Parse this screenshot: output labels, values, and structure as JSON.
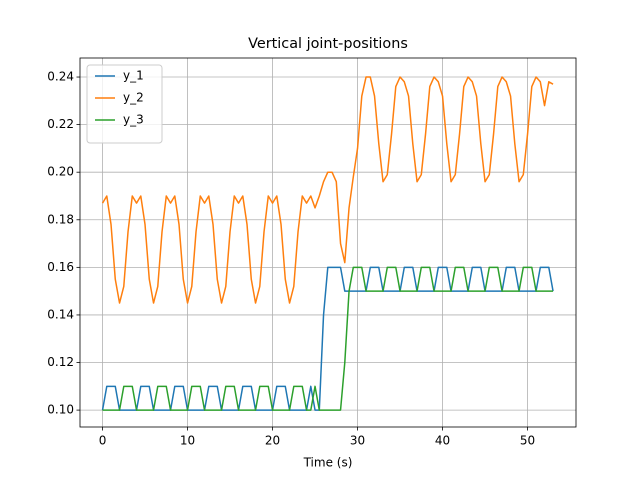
{
  "chart_data": {
    "type": "line",
    "title": "Vertical joint-positions",
    "x_label": "Time (s)",
    "x": [
      0,
      0.5,
      1,
      1.5,
      2,
      2.5,
      3,
      3.5,
      4,
      4.5,
      5,
      5.5,
      6,
      6.5,
      7,
      7.5,
      8,
      8.5,
      9,
      9.5,
      10,
      10.5,
      11,
      11.5,
      12,
      12.5,
      13,
      13.5,
      14,
      14.5,
      15,
      15.5,
      16,
      16.5,
      17,
      17.5,
      18,
      18.5,
      19,
      19.5,
      20,
      20.5,
      21,
      21.5,
      22,
      22.5,
      23,
      23.5,
      24,
      24.5,
      25,
      25.5,
      26,
      26.5,
      27,
      27.5,
      28,
      28.5,
      29,
      29.5,
      30,
      30.5,
      31,
      31.5,
      32,
      32.5,
      33,
      33.5,
      34,
      34.5,
      35,
      35.5,
      36,
      36.5,
      37,
      37.5,
      38,
      38.5,
      39,
      39.5,
      40,
      40.5,
      41,
      41.5,
      42,
      42.5,
      43,
      43.5,
      44,
      44.5,
      45,
      45.5,
      46,
      46.5,
      47,
      47.5,
      48,
      48.5,
      49,
      49.5,
      50,
      50.5,
      51,
      51.5,
      52,
      52.5,
      53
    ],
    "series": [
      {
        "name": "y_1",
        "color": "#1f77b4",
        "values": [
          0.1,
          0.11,
          0.11,
          0.11,
          0.1,
          0.1,
          0.1,
          0.1,
          0.1,
          0.11,
          0.11,
          0.11,
          0.1,
          0.1,
          0.1,
          0.1,
          0.1,
          0.11,
          0.11,
          0.11,
          0.1,
          0.1,
          0.1,
          0.1,
          0.1,
          0.11,
          0.11,
          0.11,
          0.1,
          0.1,
          0.1,
          0.1,
          0.1,
          0.11,
          0.11,
          0.11,
          0.1,
          0.1,
          0.1,
          0.1,
          0.1,
          0.11,
          0.11,
          0.11,
          0.1,
          0.1,
          0.1,
          0.1,
          0.1,
          0.11,
          0.1,
          0.1,
          0.14,
          0.16,
          0.16,
          0.16,
          0.16,
          0.15,
          0.15,
          0.15,
          0.15,
          0.15,
          0.15,
          0.16,
          0.16,
          0.16,
          0.15,
          0.15,
          0.15,
          0.15,
          0.15,
          0.16,
          0.16,
          0.16,
          0.15,
          0.15,
          0.15,
          0.15,
          0.15,
          0.16,
          0.16,
          0.16,
          0.15,
          0.15,
          0.15,
          0.15,
          0.15,
          0.16,
          0.16,
          0.16,
          0.15,
          0.15,
          0.15,
          0.15,
          0.15,
          0.16,
          0.16,
          0.16,
          0.15,
          0.15,
          0.15,
          0.15,
          0.15,
          0.16,
          0.16,
          0.16,
          0.15
        ]
      },
      {
        "name": "y_2",
        "color": "#ff7f0e",
        "values": [
          0.187,
          0.19,
          0.178,
          0.155,
          0.145,
          0.152,
          0.175,
          0.19,
          0.187,
          0.19,
          0.178,
          0.155,
          0.145,
          0.152,
          0.175,
          0.19,
          0.187,
          0.19,
          0.178,
          0.155,
          0.145,
          0.152,
          0.175,
          0.19,
          0.187,
          0.19,
          0.178,
          0.155,
          0.145,
          0.152,
          0.175,
          0.19,
          0.187,
          0.19,
          0.178,
          0.155,
          0.145,
          0.152,
          0.175,
          0.19,
          0.187,
          0.19,
          0.178,
          0.155,
          0.145,
          0.152,
          0.175,
          0.19,
          0.187,
          0.19,
          0.185,
          0.19,
          0.196,
          0.2,
          0.2,
          0.196,
          0.17,
          0.162,
          0.185,
          0.198,
          0.21,
          0.232,
          0.24,
          0.24,
          0.232,
          0.212,
          0.196,
          0.199,
          0.216,
          0.236,
          0.24,
          0.238,
          0.232,
          0.212,
          0.196,
          0.199,
          0.216,
          0.236,
          0.24,
          0.238,
          0.232,
          0.212,
          0.196,
          0.199,
          0.216,
          0.236,
          0.24,
          0.238,
          0.232,
          0.212,
          0.196,
          0.199,
          0.216,
          0.236,
          0.24,
          0.238,
          0.232,
          0.212,
          0.196,
          0.199,
          0.216,
          0.236,
          0.24,
          0.238,
          0.228,
          0.238,
          0.237
        ]
      },
      {
        "name": "y_3",
        "color": "#2ca02c",
        "values": [
          0.1,
          0.1,
          0.1,
          0.1,
          0.1,
          0.11,
          0.11,
          0.11,
          0.1,
          0.1,
          0.1,
          0.1,
          0.1,
          0.11,
          0.11,
          0.11,
          0.1,
          0.1,
          0.1,
          0.1,
          0.1,
          0.11,
          0.11,
          0.11,
          0.1,
          0.1,
          0.1,
          0.1,
          0.1,
          0.11,
          0.11,
          0.11,
          0.1,
          0.1,
          0.1,
          0.1,
          0.1,
          0.11,
          0.11,
          0.11,
          0.1,
          0.1,
          0.1,
          0.1,
          0.1,
          0.11,
          0.11,
          0.11,
          0.1,
          0.1,
          0.11,
          0.1,
          0.1,
          0.1,
          0.1,
          0.1,
          0.1,
          0.12,
          0.15,
          0.16,
          0.16,
          0.16,
          0.15,
          0.15,
          0.15,
          0.15,
          0.15,
          0.16,
          0.16,
          0.16,
          0.15,
          0.15,
          0.15,
          0.15,
          0.15,
          0.16,
          0.16,
          0.16,
          0.15,
          0.15,
          0.15,
          0.15,
          0.15,
          0.16,
          0.16,
          0.16,
          0.15,
          0.15,
          0.15,
          0.15,
          0.15,
          0.16,
          0.16,
          0.16,
          0.15,
          0.15,
          0.15,
          0.15,
          0.15,
          0.16,
          0.16,
          0.16,
          0.15,
          0.15,
          0.15,
          0.15,
          0.15
        ]
      }
    ],
    "xlim": [
      -2.65,
      55.7
    ],
    "xticks": [
      0,
      10,
      20,
      30,
      40,
      50
    ],
    "ylim": [
      0.0929,
      0.248
    ],
    "yticks": [
      {
        "value": 0.1,
        "label": "0.10"
      },
      0.12,
      0.14,
      0.16,
      0.18,
      {
        "value": 0.2,
        "label": "0.20"
      },
      0.22,
      0.24
    ],
    "grid": true,
    "legend": "upper-left"
  }
}
